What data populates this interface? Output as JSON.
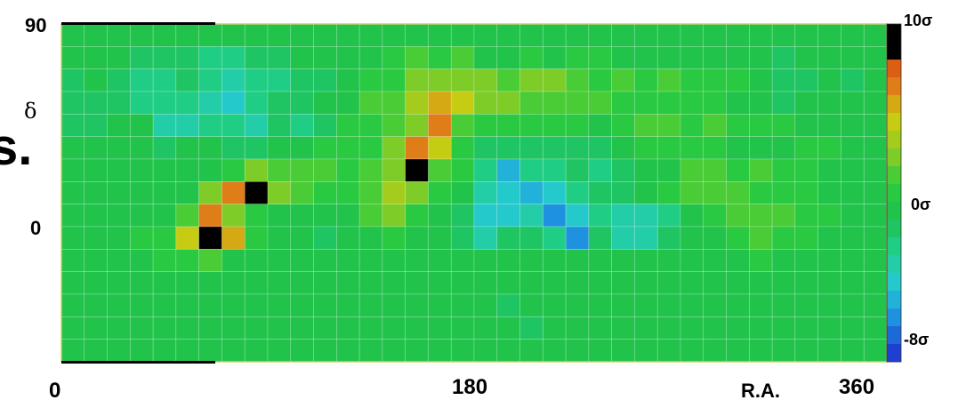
{
  "chart_data": {
    "type": "heatmap",
    "title": "",
    "xlabel": "R.A.",
    "ylabel": "δ",
    "x_ticks": [
      "0",
      "180",
      "360"
    ],
    "y_ticks": [
      "90",
      "0"
    ],
    "xlim": [
      0,
      360
    ],
    "ylim": [
      -90,
      90
    ],
    "colorbar": {
      "labels": [
        "10σ",
        "0σ",
        "-8σ"
      ],
      "range": [
        -8,
        10
      ],
      "colors": [
        "#1f3fd0",
        "#1e8fe0",
        "#25c8d4",
        "#20d090",
        "#1ec050",
        "#2ccc3c",
        "#8ecc24",
        "#cccc10",
        "#e07818",
        "#d84010",
        "#000000"
      ]
    },
    "cell_counts": {
      "cols": 36,
      "rows": 15
    },
    "significance_sigma_grid": [
      [
        0,
        0,
        0,
        0,
        0,
        0,
        0,
        0,
        0,
        0,
        0,
        0,
        0,
        0,
        0,
        0,
        0,
        0,
        0,
        0,
        0,
        0,
        0,
        0,
        0,
        0,
        0,
        0,
        0,
        0,
        0,
        0,
        0,
        0,
        0,
        0
      ],
      [
        0,
        0,
        0,
        -1,
        -1,
        -1,
        -2,
        -2,
        -1,
        -1,
        0,
        0,
        0,
        0,
        1,
        2,
        1,
        2,
        0,
        0,
        1,
        0,
        1,
        1,
        0,
        0,
        0,
        0,
        0,
        0,
        0,
        -1,
        0,
        0,
        0,
        0
      ],
      [
        -1,
        0,
        -1,
        -2,
        -2,
        -1,
        -2,
        -3,
        -2,
        -2,
        -1,
        -1,
        0,
        1,
        1,
        3,
        3,
        3,
        3,
        2,
        3,
        3,
        2,
        1,
        2,
        1,
        2,
        1,
        1,
        1,
        0,
        -1,
        -1,
        0,
        -1,
        0
      ],
      [
        -1,
        -1,
        -1,
        -2,
        -2,
        -2,
        -3,
        -4,
        -2,
        -1,
        -1,
        0,
        0,
        2,
        2,
        4,
        6,
        5,
        3,
        3,
        2,
        2,
        2,
        2,
        1,
        1,
        1,
        1,
        1,
        0,
        0,
        -1,
        0,
        0,
        0,
        0
      ],
      [
        -1,
        -1,
        0,
        0,
        -3,
        -3,
        -2,
        -2,
        -3,
        -1,
        -2,
        -1,
        1,
        1,
        2,
        3,
        7,
        2,
        1,
        1,
        1,
        1,
        1,
        0,
        1,
        2,
        2,
        1,
        2,
        1,
        1,
        1,
        0,
        0,
        0,
        0
      ],
      [
        0,
        0,
        0,
        0,
        -1,
        0,
        0,
        -1,
        -1,
        0,
        0,
        1,
        1,
        1,
        3,
        7,
        5,
        1,
        -1,
        -1,
        -1,
        -1,
        -1,
        -1,
        0,
        1,
        1,
        1,
        1,
        0,
        0,
        0,
        1,
        1,
        0,
        0
      ],
      [
        0,
        0,
        0,
        0,
        0,
        0,
        0,
        1,
        3,
        2,
        2,
        2,
        1,
        2,
        3,
        10,
        2,
        1,
        -2,
        -5,
        -2,
        -2,
        -1,
        -2,
        -1,
        0,
        0,
        2,
        2,
        1,
        2,
        1,
        1,
        0,
        0,
        0
      ],
      [
        0,
        0,
        0,
        0,
        0,
        0,
        3,
        7,
        10,
        3,
        2,
        1,
        1,
        2,
        4,
        3,
        1,
        0,
        -3,
        -4,
        -5,
        -4,
        -2,
        -1,
        -1,
        0,
        1,
        2,
        2,
        2,
        1,
        1,
        1,
        0,
        0,
        0
      ],
      [
        0,
        0,
        0,
        0,
        0,
        2,
        7,
        3,
        1,
        0,
        0,
        0,
        0,
        2,
        3,
        1,
        0,
        -1,
        -4,
        -4,
        -3,
        -6,
        -4,
        -2,
        -3,
        -3,
        -2,
        0,
        1,
        2,
        2,
        2,
        1,
        1,
        0,
        0
      ],
      [
        0,
        0,
        0,
        1,
        1,
        5,
        10,
        6,
        1,
        0,
        0,
        -1,
        0,
        0,
        1,
        0,
        0,
        -1,
        -3,
        -1,
        -1,
        -2,
        -6,
        -1,
        -3,
        -3,
        -1,
        0,
        0,
        1,
        2,
        1,
        1,
        0,
        0,
        0
      ],
      [
        0,
        0,
        0,
        0,
        1,
        1,
        2,
        0,
        0,
        0,
        0,
        0,
        0,
        0,
        0,
        0,
        0,
        0,
        0,
        0,
        0,
        0,
        0,
        0,
        0,
        0,
        0,
        0,
        0,
        0,
        1,
        0,
        0,
        0,
        0,
        0
      ],
      [
        0,
        0,
        0,
        0,
        0,
        0,
        0,
        0,
        0,
        0,
        0,
        0,
        0,
        0,
        0,
        0,
        0,
        0,
        0,
        0,
        0,
        0,
        0,
        0,
        0,
        0,
        0,
        0,
        0,
        0,
        0,
        0,
        0,
        0,
        0,
        0
      ],
      [
        0,
        0,
        0,
        0,
        0,
        0,
        0,
        0,
        0,
        0,
        0,
        0,
        0,
        0,
        0,
        0,
        0,
        0,
        0,
        -1,
        0,
        0,
        0,
        0,
        0,
        0,
        0,
        0,
        0,
        0,
        0,
        0,
        0,
        0,
        0,
        0
      ],
      [
        0,
        0,
        0,
        0,
        0,
        0,
        0,
        0,
        0,
        0,
        0,
        0,
        0,
        0,
        0,
        0,
        0,
        0,
        0,
        0,
        -1,
        0,
        0,
        0,
        0,
        0,
        0,
        0,
        0,
        0,
        0,
        0,
        0,
        0,
        0,
        0
      ],
      [
        0,
        0,
        0,
        0,
        0,
        0,
        0,
        0,
        0,
        0,
        0,
        0,
        0,
        0,
        0,
        0,
        0,
        0,
        0,
        0,
        0,
        0,
        0,
        0,
        0,
        0,
        0,
        0,
        0,
        0,
        0,
        0,
        0,
        0,
        0,
        0
      ]
    ]
  },
  "partial_text": "s."
}
